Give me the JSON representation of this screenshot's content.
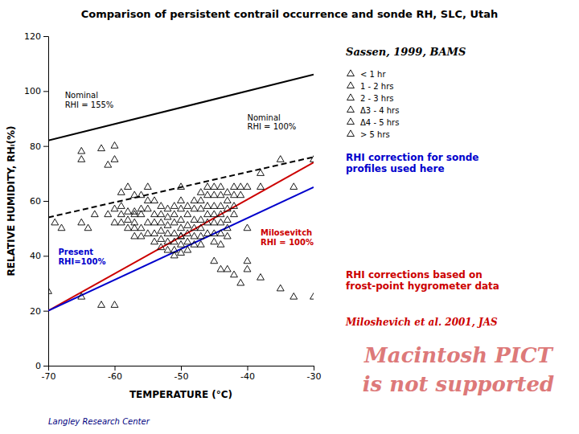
{
  "chart_data": {
    "type": "line",
    "title": "Comparison of persistent contrail occurrence and sonde RH, SLC, Utah",
    "x_label": "TEMPERATURE (°C)",
    "y_label": "RELATIVE HUMIDITY, RHᵢ(%)",
    "xlim": [
      -70,
      -30
    ],
    "ylim": [
      0,
      120
    ],
    "xticks": [
      -70,
      -60,
      -50,
      -40,
      -30
    ],
    "yticks": [
      0,
      20,
      40,
      60,
      80,
      100,
      120
    ],
    "grid": false,
    "legend": "right",
    "series": [
      {
        "name": "Nominal\nRHI = 155%",
        "type": "line",
        "line_style": "solid",
        "color": "#000000",
        "x": [
          -70,
          -30
        ],
        "values": [
          82,
          106
        ]
      },
      {
        "name": "Nominal\nRHI = 100%",
        "type": "line",
        "line_style": "dashed",
        "color": "#000000",
        "x": [
          -70,
          -30
        ],
        "values": [
          54,
          76
        ]
      },
      {
        "name": "Milosevitch\nRHI = 100%",
        "type": "line",
        "line_style": "solid",
        "color": "#cc0000",
        "x": [
          -70,
          -30
        ],
        "values": [
          20,
          74
        ]
      },
      {
        "name": "Present\nRHI=100%",
        "type": "line",
        "line_style": "solid",
        "color": "#0000cc",
        "x": [
          -70,
          -30
        ],
        "values": [
          20,
          65
        ]
      },
      {
        "type": "scatter",
        "marker": "triangle",
        "color": "#000000",
        "x": [
          -69,
          -68,
          -65,
          -65,
          -62,
          -61,
          -60,
          -60,
          -59,
          -59,
          -58,
          -58,
          -57,
          -57,
          -57,
          -56,
          -56,
          -65,
          -64,
          -63,
          -61,
          -60,
          -60,
          -59,
          -59,
          -58,
          -58,
          -57,
          -57,
          -57,
          -56,
          -56,
          -56,
          -55,
          -55,
          -55,
          -55,
          -54,
          -54,
          -54,
          -54,
          -54,
          -53,
          -53,
          -53,
          -53,
          -53,
          -53,
          -52,
          -52,
          -52,
          -52,
          -52,
          -52,
          -51,
          -51,
          -51,
          -51,
          -51,
          -51,
          -51,
          -50,
          -50,
          -50,
          -50,
          -50,
          -50,
          -50,
          -49,
          -49,
          -49,
          -49,
          -49,
          -49,
          -48,
          -48,
          -48,
          -48,
          -48,
          -48,
          -47,
          -47,
          -47,
          -47,
          -47,
          -47,
          -47,
          -46,
          -46,
          -46,
          -46,
          -46,
          -46,
          -45,
          -45,
          -45,
          -45,
          -45,
          -45,
          -45,
          -44,
          -44,
          -44,
          -44,
          -44,
          -44,
          -44,
          -43,
          -43,
          -43,
          -43,
          -43,
          -43,
          -42,
          -42,
          -42,
          -42,
          -41,
          -41,
          -40,
          -40,
          -38,
          -38,
          -35,
          -33,
          -30,
          -55,
          -50,
          -45,
          -44,
          -43,
          -42,
          -41,
          -40,
          -40,
          -38,
          -35,
          -33,
          -30,
          -70,
          -65,
          -62,
          -60,
          -50
        ],
        "values": [
          52,
          50,
          75,
          78,
          79,
          73,
          80,
          75,
          63,
          58,
          65,
          56,
          62,
          56,
          52,
          62,
          57,
          52,
          50,
          55,
          55,
          57,
          52,
          55,
          52,
          53,
          50,
          55,
          50,
          47,
          55,
          50,
          47,
          60,
          57,
          52,
          48,
          60,
          55,
          52,
          48,
          45,
          58,
          55,
          52,
          49,
          46,
          43,
          57,
          54,
          51,
          48,
          45,
          42,
          58,
          55,
          52,
          48,
          45,
          42,
          40,
          60,
          57,
          53,
          50,
          47,
          44,
          41,
          58,
          55,
          51,
          48,
          45,
          42,
          60,
          57,
          53,
          50,
          47,
          44,
          63,
          60,
          57,
          53,
          50,
          47,
          44,
          65,
          62,
          58,
          55,
          52,
          48,
          65,
          62,
          58,
          55,
          52,
          48,
          45,
          65,
          62,
          58,
          55,
          52,
          48,
          44,
          63,
          60,
          57,
          53,
          50,
          47,
          65,
          62,
          58,
          55,
          65,
          62,
          65,
          50,
          70,
          65,
          75,
          65,
          75,
          65,
          65,
          38,
          35,
          35,
          33,
          30,
          38,
          35,
          32,
          28,
          25,
          25,
          27,
          25,
          22,
          22,
          47
        ]
      }
    ],
    "legend_entries": [
      "< 1 hr",
      "1 - 2 hrs",
      "2 - 3 hrs",
      "Δ3 - 4 hrs",
      "Δ4 - 5 hrs",
      "> 5 hrs"
    ],
    "annotations": [
      {
        "text": "Sassen, 1999, BAMS",
        "color": "#000000"
      },
      {
        "text": "RHI correction for sonde\nprofiles used here",
        "color": "#0000cc"
      },
      {
        "text": "RHI corrections based on\nfrost-point hygrometer data",
        "color": "#cc0000"
      },
      {
        "text": "Miloshevich et al. 2001, JAS",
        "color": "#cc0000"
      },
      {
        "text": "Macintosh PICT\nis not supported",
        "color": "#cc3333"
      },
      {
        "text": "Langley Research Center",
        "color": "#000080"
      }
    ]
  }
}
